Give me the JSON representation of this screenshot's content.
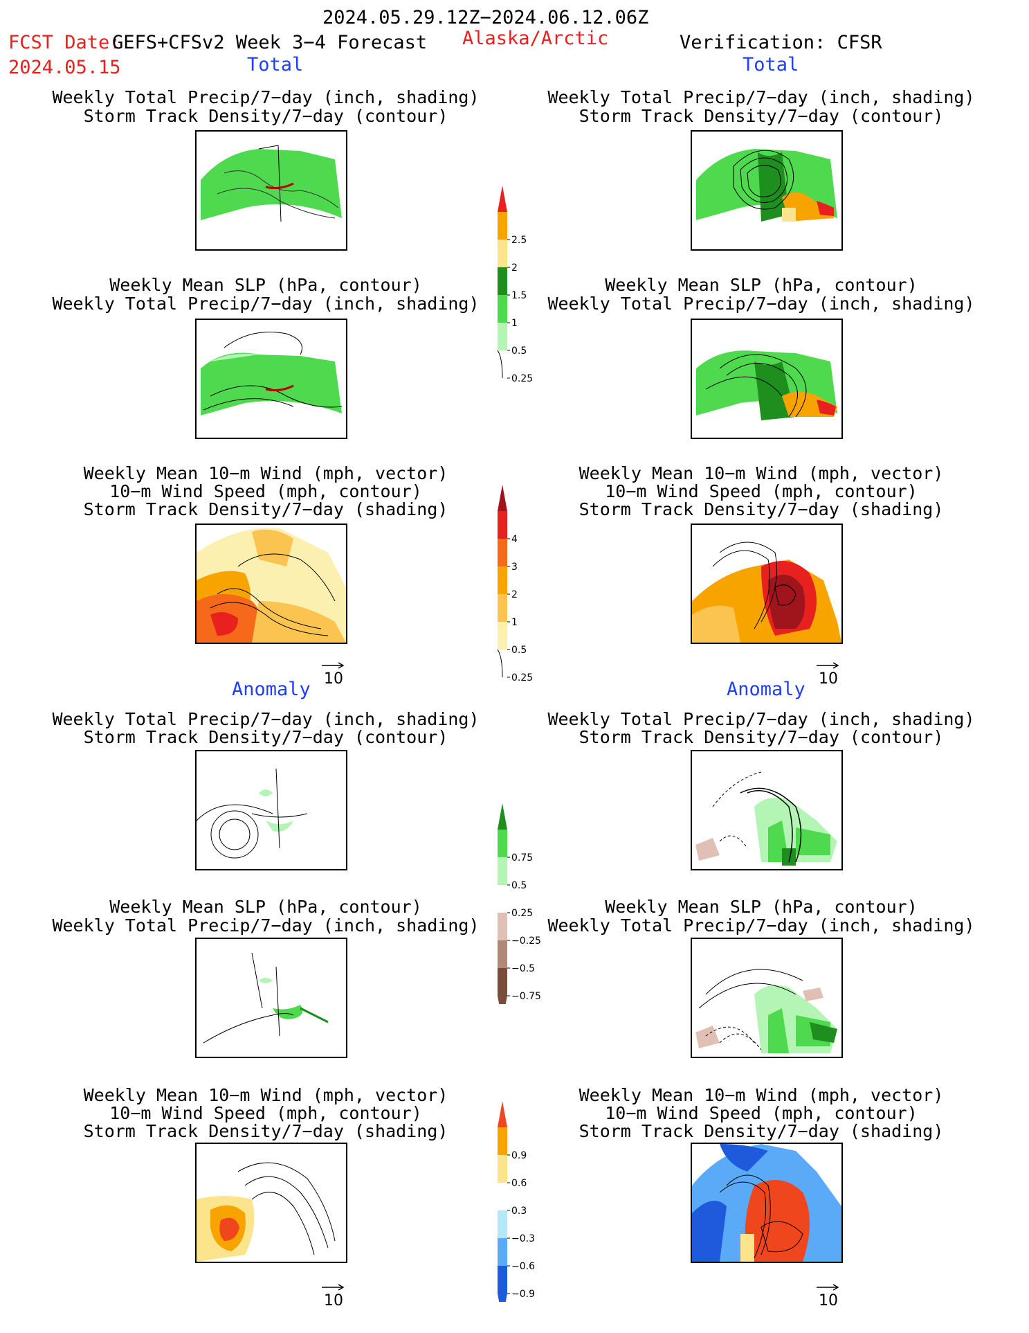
{
  "header": {
    "date_range": "2024.05.29.12Z−2024.06.12.06Z",
    "fcst_label": "FCST Date:",
    "fcst_model": "GEFS+CFSv2 Week 3−4 Forecast",
    "region": "Alaska/Arctic",
    "verification": "Verification: CFSR",
    "fcst_date": "2024.05.15"
  },
  "sections": {
    "total": "Total",
    "anomaly": "Anomaly"
  },
  "titles": {
    "precip_storm": [
      "Weekly Total Precip/7−day (inch, shading)",
      "Storm Track Density/7−day (contour)"
    ],
    "slp_precip": [
      "Weekly Mean SLP (hPa, contour)",
      "Weekly Total Precip/7−day (inch, shading)"
    ],
    "wind_storm": [
      "Weekly Mean 10−m Wind (mph, vector)",
      "10−m Wind Speed (mph, contour)",
      "Storm Track Density/7−day (shading)"
    ]
  },
  "vector_ref": "10",
  "colorbars": {
    "precip_total": {
      "labels": [
        "2.5",
        "2",
        "1.5",
        "1",
        "0.5",
        "0.25"
      ],
      "colors": [
        "#e8201e",
        "#f8a400",
        "#fbe48c",
        "#1e8f1e",
        "#4fd94f",
        "#b4f4b4"
      ]
    },
    "storm_total": {
      "labels": [
        "4",
        "3",
        "2",
        "1",
        "0.5",
        "0.25"
      ],
      "colors": [
        "#a0141c",
        "#e8201e",
        "#f46a1a",
        "#f8a400",
        "#fbc450",
        "#fbf0b0"
      ]
    },
    "precip_anom": {
      "labels": [
        "0.75",
        "0.5",
        "0.25",
        "−0.25",
        "−0.5",
        "−0.75"
      ],
      "colors": [
        "#1e8f1e",
        "#4fd94f",
        "#b4f4b4",
        "#ffffff",
        "#e0c0b4",
        "#b08878",
        "#7a4c3c"
      ]
    },
    "storm_anom": {
      "labels": [
        "0.9",
        "0.6",
        "0.3",
        "−0.3",
        "−0.6",
        "−0.9"
      ],
      "colors": [
        "#f0461e",
        "#f8a400",
        "#fbe48c",
        "#ffffff",
        "#b4e8f8",
        "#5aaaf8",
        "#1e5adc"
      ]
    }
  }
}
